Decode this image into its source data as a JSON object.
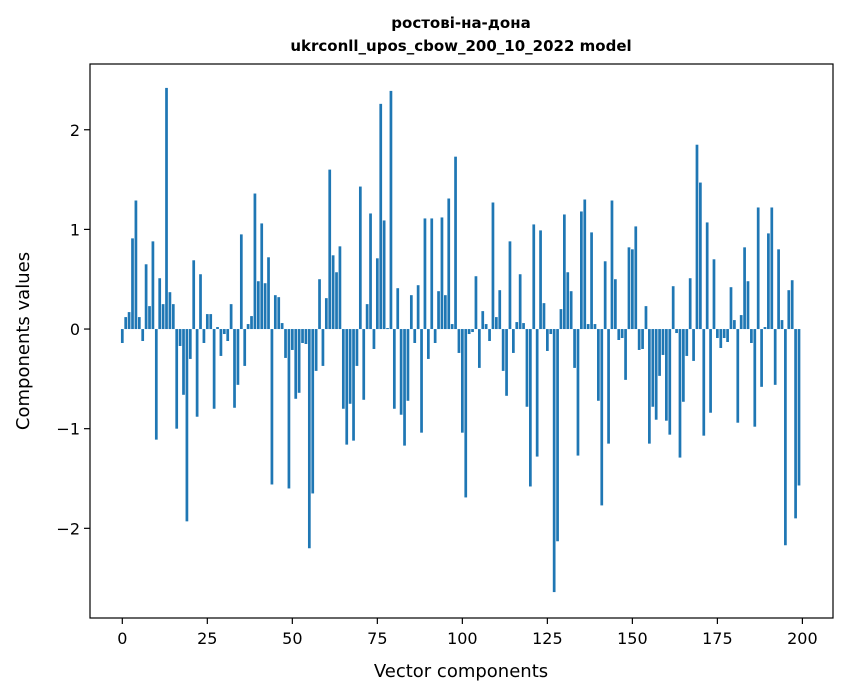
{
  "chart_data": {
    "type": "bar",
    "title_line1": "ростові-на-дона",
    "title_line2": "ukrconll_upos_cbow_200_10_2022 model",
    "xlabel": "Vector components",
    "ylabel": "Components values",
    "xlim": [
      -9.5,
      209
    ],
    "ylim": [
      -2.9,
      2.66
    ],
    "x_ticks": [
      0,
      25,
      50,
      75,
      100,
      125,
      150,
      175,
      200
    ],
    "x_tick_labels": [
      "0",
      "25",
      "50",
      "75",
      "100",
      "125",
      "150",
      "175",
      "200"
    ],
    "y_ticks": [
      -2,
      -1,
      0,
      1,
      2
    ],
    "y_tick_labels": [
      "−2",
      "−1",
      "0",
      "1",
      "2"
    ],
    "bar_color": "#1f77b4",
    "values": [
      -0.14,
      0.12,
      0.17,
      0.91,
      1.29,
      0.12,
      -0.12,
      0.65,
      0.23,
      0.88,
      -1.11,
      0.51,
      0.25,
      2.42,
      0.37,
      0.25,
      -1.0,
      -0.17,
      -0.66,
      -1.93,
      -0.3,
      0.69,
      -0.88,
      0.55,
      -0.14,
      0.15,
      0.15,
      -0.8,
      0.02,
      -0.27,
      -0.05,
      -0.12,
      0.25,
      -0.79,
      -0.56,
      0.95,
      -0.37,
      0.05,
      0.13,
      1.36,
      0.48,
      1.06,
      0.46,
      0.72,
      -1.56,
      0.34,
      0.32,
      0.06,
      -0.29,
      -1.6,
      -0.21,
      -0.7,
      -0.64,
      -0.14,
      -0.15,
      -2.2,
      -1.65,
      -0.42,
      0.5,
      -0.37,
      0.31,
      1.6,
      0.74,
      0.57,
      0.83,
      -0.8,
      -1.16,
      -0.75,
      -1.12,
      -0.37,
      1.43,
      -0.71,
      0.25,
      1.16,
      -0.2,
      0.71,
      2.26,
      1.09,
      0.01,
      2.39,
      -0.8,
      0.41,
      -0.86,
      -1.17,
      -0.72,
      0.34,
      -0.14,
      0.44,
      -1.04,
      1.11,
      -0.3,
      1.11,
      -0.14,
      0.38,
      1.12,
      0.34,
      1.31,
      0.05,
      1.73,
      -0.24,
      -1.04,
      -1.69,
      -0.05,
      -0.03,
      0.53,
      -0.39,
      0.18,
      0.05,
      -0.12,
      1.27,
      0.12,
      0.39,
      -0.42,
      -0.67,
      0.88,
      -0.24,
      0.07,
      0.55,
      0.06,
      -0.78,
      -1.58,
      1.05,
      -1.28,
      0.99,
      0.26,
      -0.22,
      -0.05,
      -2.64,
      -2.13,
      0.2,
      1.15,
      0.57,
      0.38,
      -0.39,
      -1.27,
      1.18,
      1.3,
      0.05,
      0.97,
      0.05,
      -0.72,
      -1.77,
      0.68,
      -1.15,
      1.29,
      0.5,
      -0.11,
      -0.09,
      -0.51,
      0.82,
      0.8,
      1.03,
      -0.21,
      -0.2,
      0.23,
      -1.15,
      -0.78,
      -0.91,
      -0.47,
      -0.26,
      -0.92,
      -1.06,
      0.43,
      -0.04,
      -1.29,
      -0.73,
      -0.27,
      0.51,
      -0.32,
      1.85,
      1.47,
      -1.07,
      1.07,
      -0.84,
      0.7,
      -0.09,
      -0.19,
      -0.09,
      -0.13,
      0.42,
      0.09,
      -0.94,
      0.14,
      0.82,
      0.48,
      -0.14,
      -0.98,
      1.22,
      -0.58,
      0.02,
      0.96,
      1.22,
      -0.56,
      0.8,
      0.09,
      -2.17,
      0.39,
      0.49,
      -1.9,
      -1.57
    ]
  }
}
